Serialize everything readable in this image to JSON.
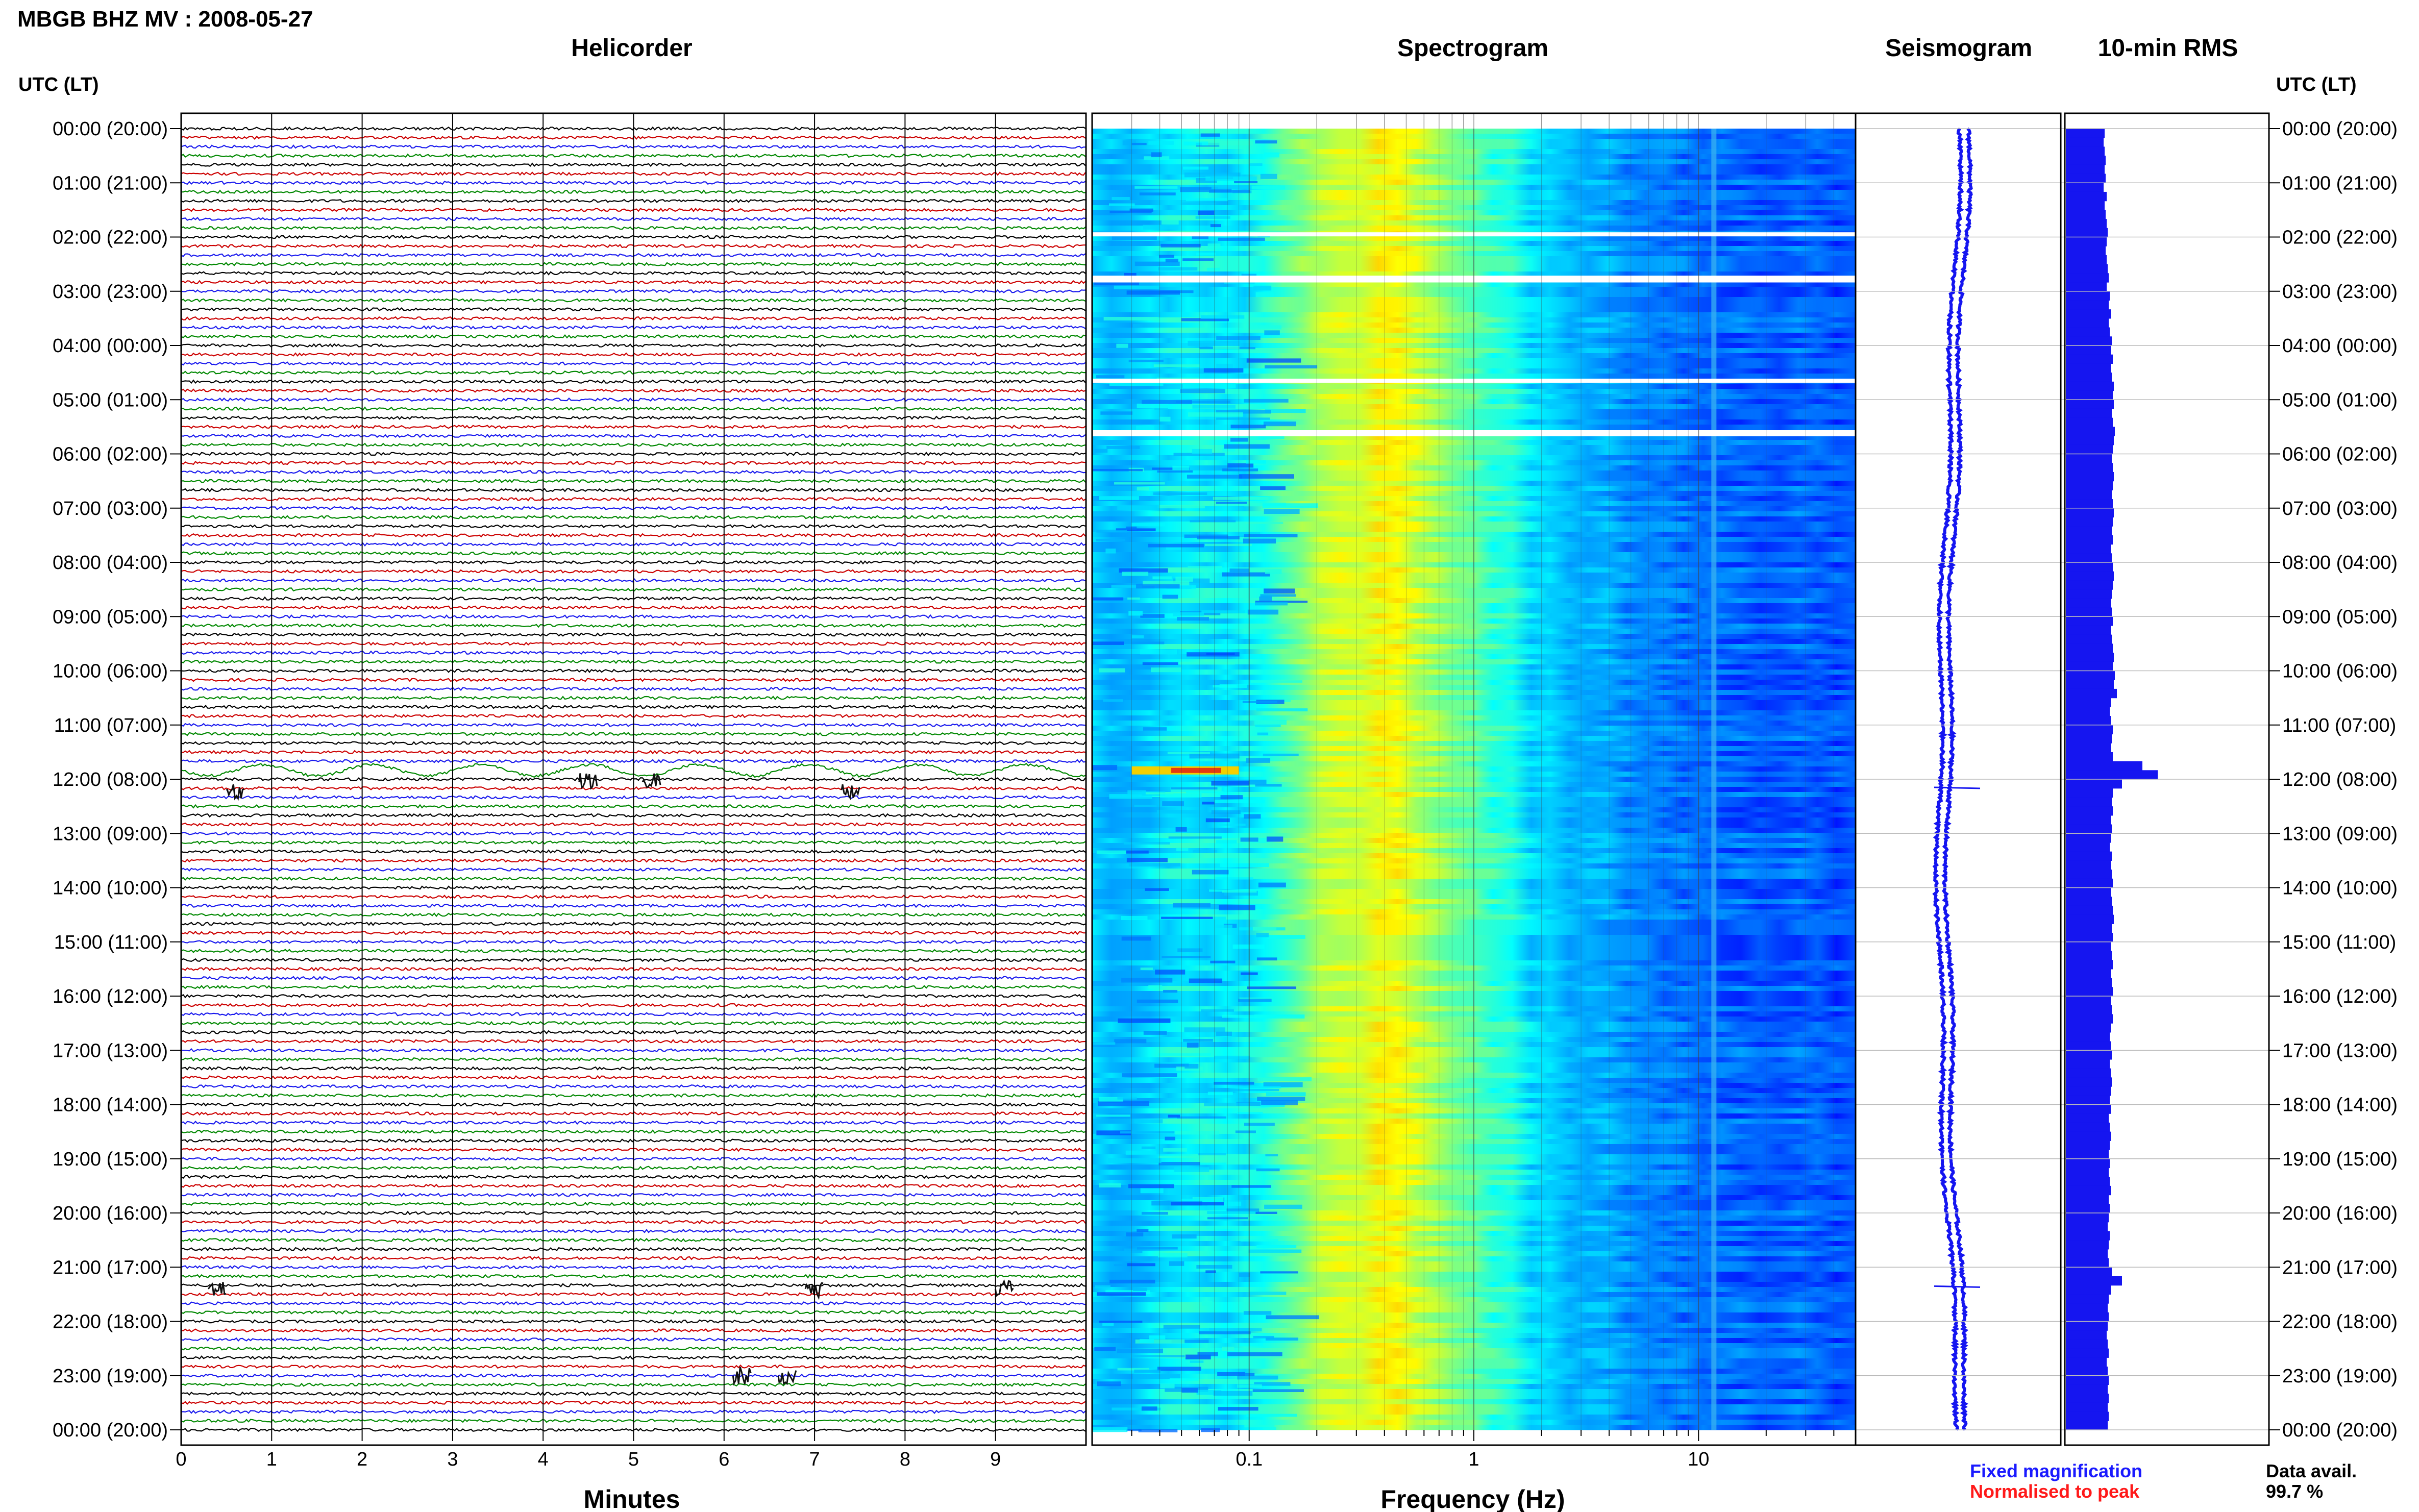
{
  "header": {
    "station_title": "MBGB BHZ MV : 2008-05-27"
  },
  "panels": {
    "helicorder": "Helicorder",
    "spectrogram": "Spectrogram",
    "seismogram": "Seismogram",
    "rms": "10-min RMS"
  },
  "time_axis": {
    "left_label": "UTC (LT)",
    "right_label": "UTC (LT)",
    "ticks": [
      "00:00 (20:00)",
      "01:00 (21:00)",
      "02:00 (22:00)",
      "03:00 (23:00)",
      "04:00 (00:00)",
      "05:00 (01:00)",
      "06:00 (02:00)",
      "07:00 (03:00)",
      "08:00 (04:00)",
      "09:00 (05:00)",
      "10:00 (06:00)",
      "11:00 (07:00)",
      "12:00 (08:00)",
      "13:00 (09:00)",
      "14:00 (10:00)",
      "15:00 (11:00)",
      "16:00 (12:00)",
      "17:00 (13:00)",
      "18:00 (14:00)",
      "19:00 (15:00)",
      "20:00 (16:00)",
      "21:00 (17:00)",
      "22:00 (18:00)",
      "23:00 (19:00)",
      "00:00 (20:00)"
    ]
  },
  "helicorder_axis": {
    "xlabel": "Minutes",
    "ticks": [
      "0",
      "1",
      "2",
      "3",
      "4",
      "5",
      "6",
      "7",
      "8",
      "9"
    ]
  },
  "spectrogram_axis": {
    "xlabel": "Frequency (Hz)",
    "ticks": [
      "0.1",
      "1",
      "10"
    ]
  },
  "legend": {
    "fixed": "Fixed magnification",
    "normalised": "Normalised to peak",
    "fixed_color": "#1a1aff",
    "normalised_color": "#ff1a1a"
  },
  "data_avail": {
    "label": "Data avail.",
    "value": "99.7 %"
  },
  "colors": {
    "trace_cycle": [
      "#000000",
      "#cc0000",
      "#1a1aee",
      "#008800"
    ],
    "rms_bar": "#1515f0",
    "seismogram": "#1515f0"
  },
  "chart_data": {
    "type": "heatmap",
    "time_range_hours": [
      0,
      24
    ],
    "helicorder_minutes_range": [
      0,
      10
    ],
    "spectrogram_freq_range_hz": [
      0.02,
      50
    ],
    "spectrogram_xscale": "log",
    "spectrogram_gaps_hours": [
      1.95,
      2.75,
      2.8,
      4.65,
      5.6
    ],
    "events": [
      {
        "time_hours": 11.8,
        "helicorder_minutes": [
          0,
          10
        ],
        "note": "long-period wave train"
      },
      {
        "time_hours": 12.05,
        "helicorder_minutes": [
          4.5,
          5.2
        ]
      },
      {
        "time_hours": 12.2,
        "helicorder_minutes": [
          0.6,
          7.4
        ]
      },
      {
        "time_hours": 21.4,
        "helicorder_minutes": [
          0.4,
          7.0,
          9.1
        ]
      },
      {
        "time_hours": 23.0,
        "helicorder_minutes": [
          6.2,
          6.7
        ]
      }
    ],
    "rms_10min_relative": [
      0.38,
      0.37,
      0.38,
      0.39,
      0.38,
      0.39,
      0.37,
      0.4,
      0.38,
      0.39,
      0.4,
      0.41,
      0.4,
      0.39,
      0.4,
      0.41,
      0.42,
      0.4,
      0.43,
      0.42,
      0.44,
      0.42,
      0.43,
      0.45,
      0.44,
      0.46,
      0.44,
      0.45,
      0.47,
      0.46,
      0.47,
      0.45,
      0.46,
      0.48,
      0.47,
      0.46,
      0.45,
      0.46,
      0.47,
      0.46,
      0.45,
      0.46,
      0.47,
      0.46,
      0.45,
      0.46,
      0.44,
      0.45,
      0.46,
      0.47,
      0.46,
      0.45,
      0.44,
      0.45,
      0.46,
      0.44,
      0.45,
      0.46,
      0.47,
      0.46,
      0.48,
      0.47,
      0.5,
      0.44,
      0.43,
      0.44,
      0.46,
      0.45,
      0.44,
      0.46,
      0.75,
      0.9,
      0.55,
      0.46,
      0.45,
      0.46,
      0.44,
      0.45,
      0.44,
      0.43,
      0.45,
      0.44,
      0.45,
      0.46,
      0.44,
      0.45,
      0.46,
      0.47,
      0.45,
      0.46,
      0.44,
      0.45,
      0.46,
      0.44,
      0.45,
      0.46,
      0.44,
      0.45,
      0.46,
      0.44,
      0.43,
      0.44,
      0.45,
      0.43,
      0.44,
      0.45,
      0.44,
      0.43,
      0.44,
      0.42,
      0.43,
      0.44,
      0.43,
      0.42,
      0.43,
      0.42,
      0.43,
      0.44,
      0.42,
      0.43,
      0.42,
      0.41,
      0.43,
      0.42,
      0.41,
      0.42,
      0.45,
      0.55,
      0.44,
      0.42,
      0.41,
      0.42,
      0.41,
      0.4,
      0.41,
      0.42,
      0.4,
      0.41,
      0.42,
      0.41,
      0.42,
      0.41,
      0.42,
      0.41
    ]
  }
}
